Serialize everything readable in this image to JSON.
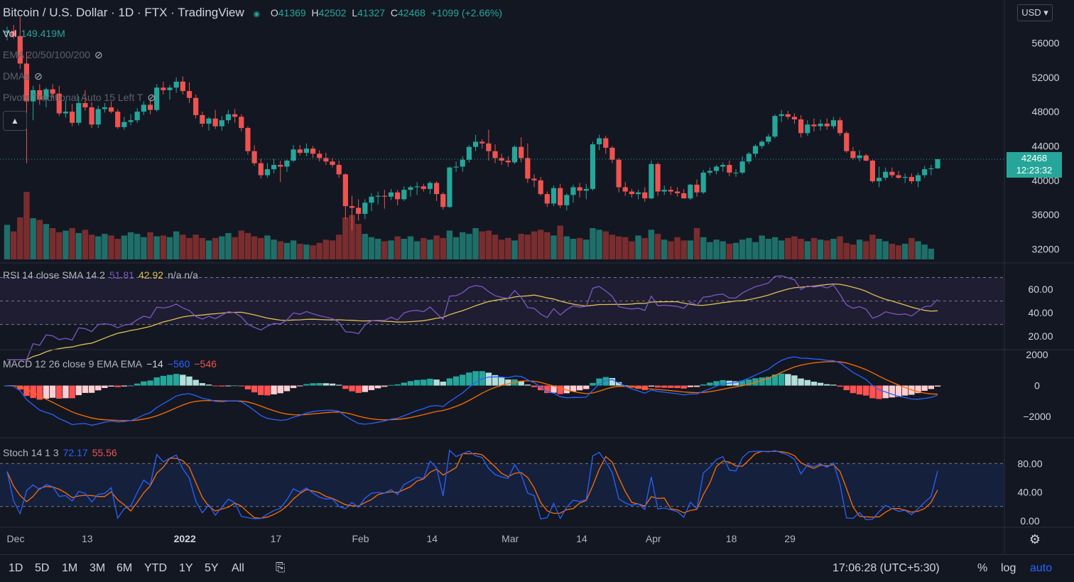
{
  "header": {
    "symbol": "Bitcoin / U.S. Dollar · 1D · FTX · TradingView",
    "o_label": "O",
    "o": "41369",
    "h_label": "H",
    "h": "42502",
    "l_label": "L",
    "l": "41327",
    "c_label": "C",
    "c": "42468",
    "change": "+1099 (+2.66%)"
  },
  "indicators": {
    "vol_label": "Vol",
    "vol_value": "149.419M",
    "ema_label": "EMA 20/50/100/200",
    "dma_label": "DMAs",
    "pivots_label": "Pivots Traditional Auto 15 Left T",
    "rsi_label": "RSI 14 close SMA 14 2",
    "rsi_v1": "51.81",
    "rsi_v2": "42.92",
    "rsi_v3": "n/a n/a",
    "macd_label": "MACD 12 26 close 9 EMA EMA",
    "macd_v1": "−14",
    "macd_v2": "−560",
    "macd_v3": "−546",
    "stoch_label": "Stoch 14 1 3",
    "stoch_v1": "72.17",
    "stoch_v2": "55.56"
  },
  "currency": "USD",
  "price_label": {
    "price": "42468",
    "countdown": "12:23:32"
  },
  "timeframes": [
    "1D",
    "5D",
    "1M",
    "3M",
    "6M",
    "YTD",
    "1Y",
    "5Y",
    "All"
  ],
  "clock": "17:06:28 (UTC+5:30)",
  "scale_buttons": [
    "%",
    "log",
    "auto"
  ],
  "colors": {
    "up": "#26a69a",
    "down": "#ef5350",
    "rsi": "#7e57c2",
    "ma": "#e0c050",
    "macd": "#2962ff",
    "signal": "#ff6d00",
    "stochK": "#2962ff",
    "stochD": "#ff6d00",
    "bg": "#131722"
  },
  "icons": [
    "eye-off-icon",
    "chevron-up-icon",
    "chevron-down-icon",
    "calendar-range-icon",
    "gear-icon"
  ],
  "chart_data": [
    {
      "type": "candlestick",
      "title": "Bitcoin / U.S. Dollar · 1D · FTX",
      "y_ticks": [
        32000,
        36000,
        40000,
        44000,
        48000,
        52000,
        56000
      ],
      "ylim": [
        30800,
        61000
      ],
      "x_ticks": [
        "Dec",
        "13",
        "2022",
        "17",
        "Feb",
        "14",
        "Mar",
        "14",
        "Apr",
        "18",
        "29"
      ],
      "candles": [
        [
          57200,
          57900,
          56300,
          57400
        ],
        [
          57400,
          58100,
          56500,
          56800
        ],
        [
          56800,
          59000,
          53000,
          53600
        ],
        [
          53600,
          55000,
          42000,
          49200
        ],
        [
          49200,
          51000,
          47000,
          50500
        ],
        [
          50500,
          51200,
          48800,
          49400
        ],
        [
          49400,
          50800,
          48500,
          50600
        ],
        [
          50600,
          51200,
          49600,
          50100
        ],
        [
          50100,
          51000,
          47500,
          47800
        ],
        [
          47800,
          49300,
          47300,
          48000
        ],
        [
          48000,
          48900,
          46300,
          46700
        ],
        [
          46700,
          49800,
          46400,
          49000
        ],
        [
          49000,
          50500,
          48100,
          48500
        ],
        [
          48500,
          49100,
          46100,
          46500
        ],
        [
          46500,
          48700,
          46100,
          48300
        ],
        [
          48300,
          49000,
          47900,
          48500
        ],
        [
          48500,
          49200,
          47800,
          48000
        ],
        [
          48000,
          48300,
          46000,
          46200
        ],
        [
          46200,
          47400,
          45900,
          46800
        ],
        [
          46800,
          47700,
          46400,
          47000
        ],
        [
          47000,
          48400,
          46700,
          48000
        ],
        [
          48000,
          49200,
          47600,
          48800
        ],
        [
          48800,
          49300,
          47700,
          48200
        ],
        [
          48200,
          51200,
          48000,
          50800
        ],
        [
          50800,
          51500,
          50000,
          50500
        ],
        [
          50500,
          51100,
          49400,
          50800
        ],
        [
          50800,
          52000,
          50200,
          51500
        ],
        [
          51500,
          52100,
          50000,
          50400
        ],
        [
          50400,
          51400,
          49000,
          49600
        ],
        [
          49600,
          50000,
          47200,
          47600
        ],
        [
          47600,
          48000,
          46200,
          46600
        ],
        [
          46600,
          47400,
          45800,
          47200
        ],
        [
          47200,
          48200,
          46000,
          46300
        ],
        [
          46300,
          47500,
          45800,
          47000
        ],
        [
          47000,
          48200,
          46600,
          47700
        ],
        [
          47700,
          48300,
          46700,
          47400
        ],
        [
          47400,
          47700,
          45700,
          46100
        ],
        [
          46100,
          46300,
          43000,
          43400
        ],
        [
          43400,
          44100,
          41700,
          42000
        ],
        [
          42000,
          42500,
          40200,
          40600
        ],
        [
          40600,
          42000,
          40300,
          41300
        ],
        [
          41300,
          42500,
          40800,
          41800
        ],
        [
          41800,
          42300,
          39800,
          41600
        ],
        [
          41600,
          42400,
          41000,
          42300
        ],
        [
          42300,
          44100,
          42100,
          43600
        ],
        [
          43600,
          44100,
          42900,
          43200
        ],
        [
          43200,
          44300,
          42800,
          43700
        ],
        [
          43700,
          44000,
          42600,
          43100
        ],
        [
          43100,
          43500,
          42200,
          42600
        ],
        [
          42600,
          43200,
          41800,
          42200
        ],
        [
          42200,
          42600,
          41500,
          41800
        ],
        [
          41800,
          42300,
          40300,
          40700
        ],
        [
          40700,
          40800,
          35500,
          37000
        ],
        [
          37000,
          38200,
          34200,
          36800
        ],
        [
          36800,
          37800,
          35300,
          36100
        ],
        [
          36100,
          37800,
          35500,
          37400
        ],
        [
          37400,
          38500,
          36400,
          38100
        ],
        [
          38100,
          38700,
          37200,
          38200
        ],
        [
          38200,
          38900,
          36700,
          38100
        ],
        [
          38100,
          39000,
          37700,
          38600
        ],
        [
          38600,
          38900,
          37100,
          37800
        ],
        [
          37800,
          39300,
          37600,
          38900
        ],
        [
          38900,
          39400,
          38100,
          39200
        ],
        [
          39200,
          39800,
          38300,
          39300
        ],
        [
          39300,
          39600,
          38700,
          39000
        ],
        [
          39000,
          39900,
          38400,
          39700
        ],
        [
          39700,
          39900,
          37600,
          38400
        ],
        [
          38400,
          38600,
          36600,
          36900
        ],
        [
          36900,
          41600,
          36800,
          41500
        ],
        [
          41500,
          42200,
          41000,
          41600
        ],
        [
          41600,
          42800,
          41000,
          42400
        ],
        [
          42400,
          44100,
          42100,
          43900
        ],
        [
          43900,
          45300,
          43400,
          44500
        ],
        [
          44500,
          44800,
          43700,
          44300
        ],
        [
          44300,
          45900,
          42300,
          43400
        ],
        [
          43400,
          44200,
          42000,
          42600
        ],
        [
          42600,
          43100,
          41800,
          42300
        ],
        [
          42300,
          42800,
          41600,
          42100
        ],
        [
          42100,
          44100,
          41900,
          43900
        ],
        [
          43900,
          45000,
          42100,
          42600
        ],
        [
          42600,
          44300,
          39700,
          40200
        ],
        [
          40200,
          40700,
          39200,
          40000
        ],
        [
          40000,
          40400,
          38200,
          38400
        ],
        [
          38400,
          38700,
          36900,
          37300
        ],
        [
          37300,
          39400,
          37000,
          39100
        ],
        [
          39100,
          39600,
          36800,
          37100
        ],
        [
          37100,
          38500,
          36500,
          38300
        ],
        [
          38300,
          39500,
          37400,
          39200
        ],
        [
          39200,
          39700,
          38000,
          38800
        ],
        [
          38800,
          39600,
          37800,
          39000
        ],
        [
          39000,
          44500,
          38800,
          44200
        ],
        [
          44200,
          45300,
          43500,
          44900
        ],
        [
          44900,
          45200,
          43100,
          43800
        ],
        [
          43800,
          44000,
          42000,
          42400
        ],
        [
          42400,
          42600,
          38600,
          39200
        ],
        [
          39200,
          39800,
          38200,
          38700
        ],
        [
          38700,
          39000,
          38000,
          38400
        ],
        [
          38400,
          38900,
          37800,
          38600
        ],
        [
          38600,
          39200,
          37500,
          37900
        ],
        [
          37900,
          42300,
          37800,
          41900
        ],
        [
          41900,
          42100,
          38200,
          38700
        ],
        [
          38700,
          39400,
          38300,
          38900
        ],
        [
          38900,
          39300,
          38300,
          38700
        ],
        [
          38700,
          39200,
          38100,
          38500
        ],
        [
          38500,
          39000,
          37900,
          37900
        ],
        [
          37900,
          39600,
          37700,
          39500
        ],
        [
          39500,
          40100,
          38100,
          38600
        ],
        [
          38600,
          41200,
          38400,
          40900
        ],
        [
          40900,
          41500,
          40600,
          41100
        ],
        [
          41100,
          41800,
          40700,
          41600
        ],
        [
          41600,
          42100,
          41000,
          41800
        ],
        [
          41800,
          42300,
          40500,
          40900
        ],
        [
          40900,
          41300,
          40400,
          40900
        ],
        [
          40900,
          42800,
          40700,
          42200
        ],
        [
          42200,
          43300,
          41900,
          43100
        ],
        [
          43100,
          44200,
          42700,
          44000
        ],
        [
          44000,
          44700,
          43700,
          44500
        ],
        [
          44500,
          45400,
          44200,
          45100
        ],
        [
          45100,
          47700,
          44900,
          47500
        ],
        [
          47500,
          48200,
          46800,
          47700
        ],
        [
          47700,
          48100,
          47100,
          47400
        ],
        [
          47400,
          47800,
          46600,
          47100
        ],
        [
          47100,
          47600,
          45000,
          45500
        ],
        [
          45500,
          47000,
          45200,
          46500
        ],
        [
          46500,
          47200,
          45700,
          46300
        ],
        [
          46300,
          47100,
          45800,
          46600
        ],
        [
          46600,
          47200,
          45900,
          46300
        ],
        [
          46300,
          47400,
          46000,
          47000
        ],
        [
          47000,
          47300,
          45200,
          45500
        ],
        [
          45500,
          45700,
          43200,
          43400
        ],
        [
          43400,
          43900,
          42400,
          42600
        ],
        [
          42600,
          43500,
          42200,
          42900
        ],
        [
          42900,
          43100,
          42200,
          42300
        ],
        [
          42300,
          42400,
          39700,
          39900
        ],
        [
          39900,
          41600,
          39200,
          40300
        ],
        [
          40300,
          41500,
          40000,
          41000
        ],
        [
          41000,
          41500,
          40300,
          40600
        ],
        [
          40600,
          41100,
          40200,
          40300
        ],
        [
          40300,
          40800,
          39700,
          40400
        ],
        [
          40400,
          40800,
          39600,
          39900
        ],
        [
          39900,
          40900,
          39200,
          40600
        ],
        [
          40600,
          41700,
          40300,
          41300
        ],
        [
          41300,
          41800,
          40600,
          41400
        ],
        [
          41400,
          42502,
          41327,
          42468
        ]
      ],
      "volume": [
        4.2,
        3.4,
        5.1,
        8.2,
        5.0,
        4.8,
        4.3,
        3.8,
        3.3,
        3.5,
        3.8,
        3.2,
        3.6,
        3.0,
        2.8,
        3.1,
        2.9,
        2.5,
        2.9,
        3.3,
        3.1,
        2.7,
        3.3,
        2.8,
        2.9,
        2.7,
        3.4,
        3.0,
        2.6,
        3.0,
        2.6,
        2.3,
        2.6,
        2.8,
        3.2,
        2.7,
        3.5,
        3.2,
        2.8,
        2.6,
        2.9,
        2.4,
        2.2,
        2.0,
        2.3,
        1.9,
        1.8,
        1.7,
        2.0,
        2.4,
        2.3,
        3.0,
        5.1,
        5.4,
        4.3,
        3.1,
        2.7,
        2.5,
        2.2,
        2.3,
        2.8,
        2.5,
        2.8,
        2.2,
        2.6,
        2.4,
        2.9,
        2.6,
        3.5,
        2.7,
        3.3,
        3.1,
        3.8,
        3.4,
        3.5,
        3.0,
        2.4,
        2.6,
        2.3,
        3.1,
        3.0,
        3.4,
        3.6,
        3.3,
        2.9,
        4.1,
        2.8,
        2.5,
        2.6,
        2.4,
        3.8,
        3.6,
        3.4,
        3.0,
        2.8,
        2.7,
        2.2,
        2.9,
        2.6,
        3.6,
        3.1,
        2.4,
        2.2,
        2.7,
        2.3,
        2.3,
        3.8,
        2.7,
        2.1,
        2.4,
        2.2,
        1.9,
        2.0,
        2.4,
        2.6,
        2.1,
        2.9,
        2.5,
        2.7,
        2.3,
        2.6,
        2.8,
        2.5,
        2.2,
        2.6,
        2.4,
        2.3,
        2.5,
        2.8,
        2.0,
        1.8,
        2.4,
        2.2,
        3.0,
        2.5,
        2.2,
        1.9,
        1.7,
        1.9,
        2.6,
        2.2,
        1.8,
        1.3
      ],
      "last_price": 42468
    },
    {
      "type": "line",
      "name": "RSI 14 close",
      "y_ticks": [
        20,
        40,
        60
      ],
      "ylim": [
        11,
        80
      ],
      "bands": [
        30,
        50,
        70
      ]
    },
    {
      "type": "bar",
      "name": "MACD 12 26 close 9",
      "y_ticks": [
        -2000,
        0,
        2000
      ],
      "ylim": [
        -3200,
        2100
      ]
    },
    {
      "type": "line",
      "name": "Stoch 14 1 3",
      "y_ticks": [
        0,
        40,
        80
      ],
      "ylim": [
        -5,
        110
      ],
      "bands": [
        20,
        80
      ]
    }
  ]
}
